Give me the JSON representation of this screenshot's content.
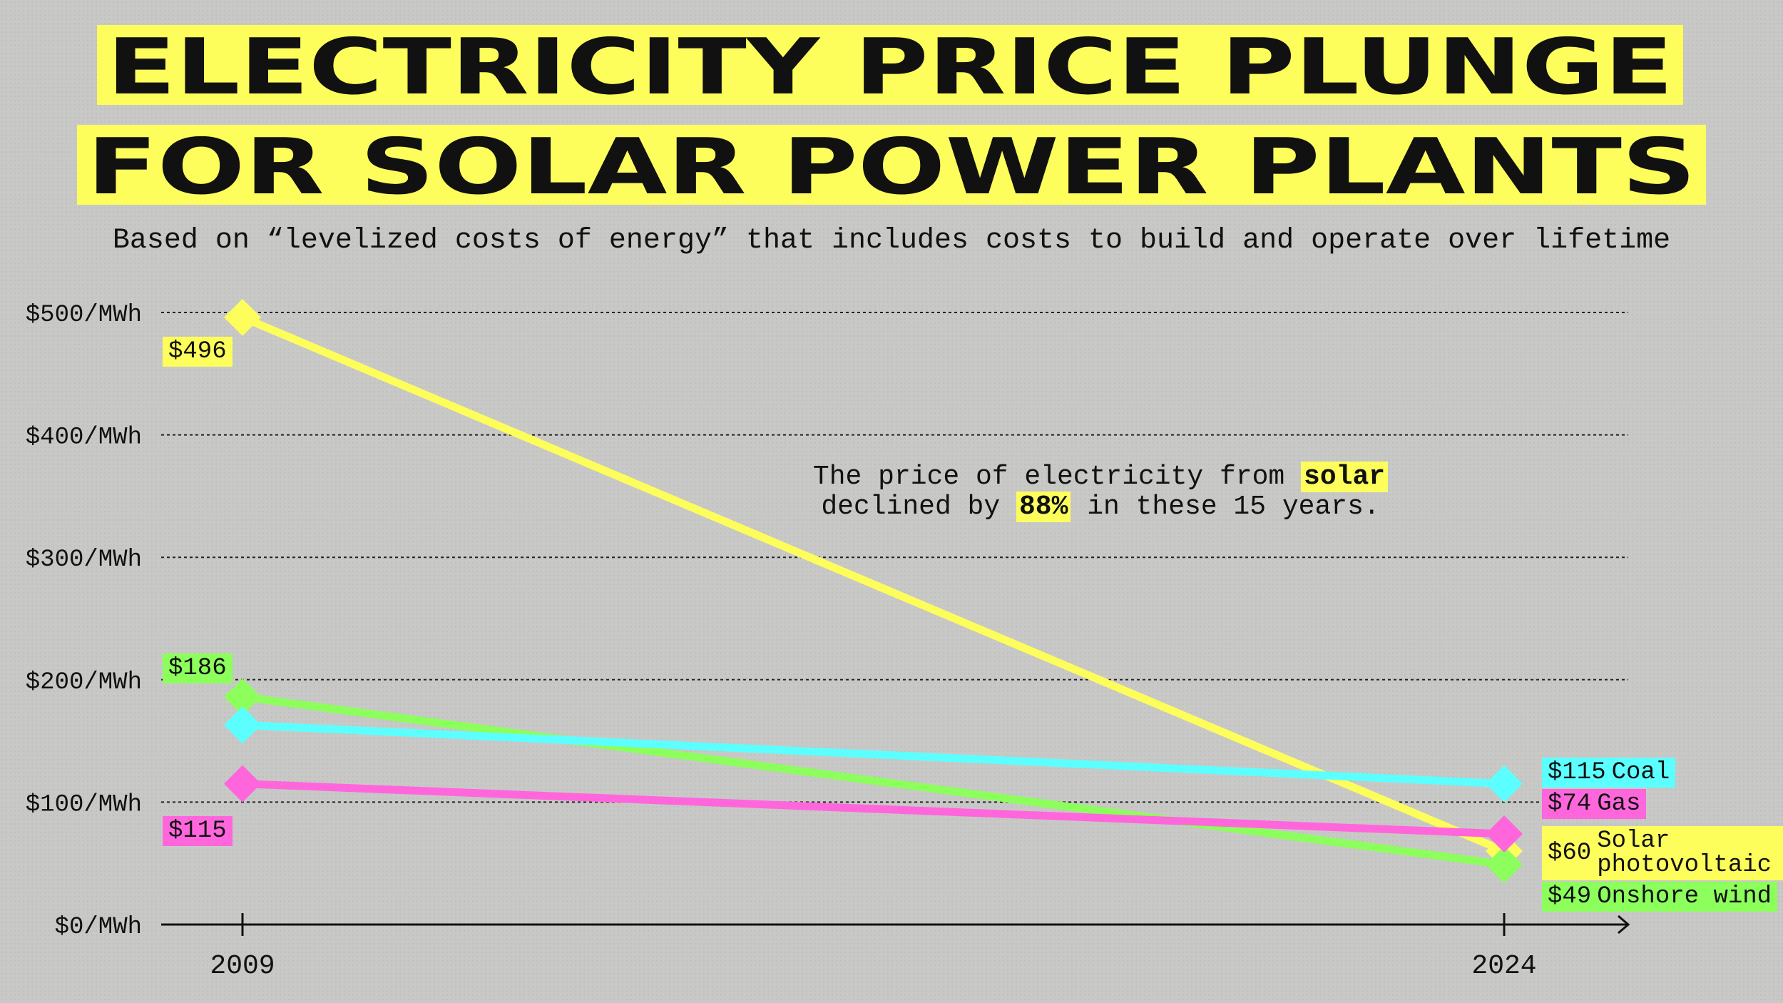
{
  "chart_data": {
    "type": "line",
    "title": [
      "ELECTRICITY PRICE PLUNGE",
      "FOR SOLAR POWER PLANTS"
    ],
    "subtitle": "Based on “levelized costs of energy” that includes costs to build and operate over lifetime",
    "annotation": [
      "The price of electricity from",
      "solar",
      "declined by",
      "88%",
      "in these 15 years."
    ],
    "categories": [
      "2009",
      "2024"
    ],
    "series": [
      {
        "name": "Solar photovoltaic",
        "color": "#fdfd5c",
        "values": [
          496,
          60
        ],
        "value_labels": [
          "$496",
          "$60"
        ]
      },
      {
        "name": "Onshore wind",
        "color": "#8cff5c",
        "values": [
          186,
          49
        ],
        "value_labels": [
          "$186",
          "$49"
        ]
      },
      {
        "name": "Coal",
        "color": "#5cffff",
        "values": [
          163,
          115
        ],
        "value_labels": [
          null,
          "$115"
        ]
      },
      {
        "name": "Gas",
        "color": "#ff66dc",
        "values": [
          115,
          74
        ],
        "value_labels": [
          "$115",
          "$74"
        ]
      }
    ],
    "ylim": [
      0,
      500
    ],
    "yticks": [
      {
        "value": 0,
        "label": "$0/MWh"
      },
      {
        "value": 100,
        "label": "$100/MWh"
      },
      {
        "value": 200,
        "label": "$200/MWh"
      },
      {
        "value": 300,
        "label": "$300/MWh"
      },
      {
        "value": 400,
        "label": "$400/MWh"
      },
      {
        "value": 500,
        "label": "$500/MWh"
      }
    ],
    "grid": true
  }
}
